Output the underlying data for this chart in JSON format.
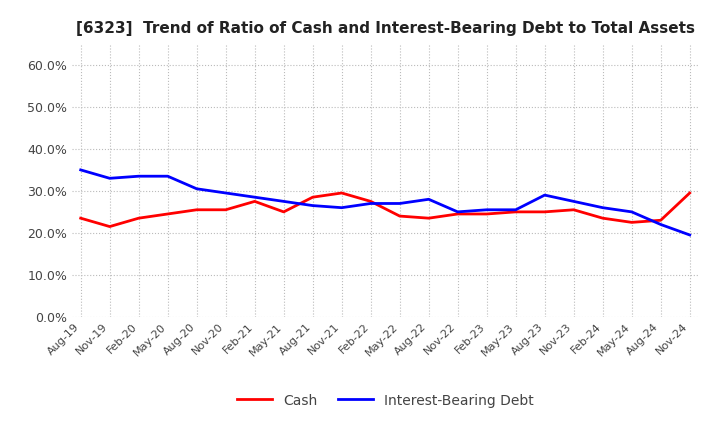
{
  "title": "[6323]  Trend of Ratio of Cash and Interest-Bearing Debt to Total Assets",
  "x_labels": [
    "Aug-19",
    "Nov-19",
    "Feb-20",
    "May-20",
    "Aug-20",
    "Nov-20",
    "Feb-21",
    "May-21",
    "Aug-21",
    "Nov-21",
    "Feb-22",
    "May-22",
    "Aug-22",
    "Nov-22",
    "Feb-23",
    "May-23",
    "Aug-23",
    "Nov-23",
    "Feb-24",
    "May-24",
    "Aug-24",
    "Nov-24"
  ],
  "cash": [
    23.5,
    21.5,
    23.5,
    24.5,
    25.5,
    25.5,
    27.5,
    25.0,
    28.5,
    29.5,
    27.5,
    24.0,
    23.5,
    24.5,
    24.5,
    25.0,
    25.0,
    25.5,
    23.5,
    22.5,
    23.0,
    29.5
  ],
  "interest_bearing_debt": [
    35.0,
    33.0,
    33.5,
    33.5,
    30.5,
    29.5,
    28.5,
    27.5,
    26.5,
    26.0,
    27.0,
    27.0,
    28.0,
    25.0,
    25.5,
    25.5,
    29.0,
    27.5,
    26.0,
    25.0,
    22.0,
    19.5
  ],
  "cash_color": "#ff0000",
  "debt_color": "#0000ff",
  "ylim": [
    0,
    65
  ],
  "yticks": [
    0,
    10,
    20,
    30,
    40,
    50,
    60
  ],
  "background_color": "#ffffff",
  "grid_color": "#bbbbbb",
  "title_fontsize": 11,
  "legend_items": [
    "Cash",
    "Interest-Bearing Debt"
  ]
}
